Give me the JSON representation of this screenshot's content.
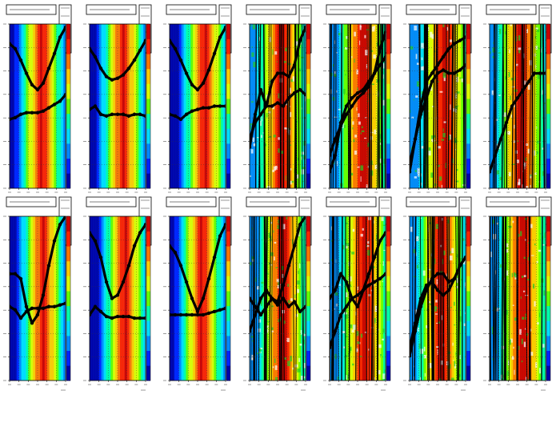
{
  "figure": {
    "rows": 2,
    "cols": 7,
    "colorbar_colors": [
      "#0000aa",
      "#0022ff",
      "#0088ff",
      "#00ddff",
      "#00ffaa",
      "#66ff00",
      "#ddff00",
      "#ffcc00",
      "#ff7700",
      "#ff2200",
      "#cc0000"
    ],
    "footer_prefix": "",
    "footer_emphasis": ""
  },
  "chart_data": [
    {
      "type": "heatmap",
      "panel_index": 0,
      "row": 0,
      "col": 0,
      "pattern": "smooth",
      "x": [
        0,
        0.1,
        0.2,
        0.3,
        0.4,
        0.5,
        0.6,
        0.7,
        0.8,
        0.9,
        1.0
      ],
      "series": [
        {
          "values": [
            0.12,
            0.15,
            0.22,
            0.3,
            0.37,
            0.4,
            0.36,
            0.27,
            0.18,
            0.08,
            0.02
          ]
        },
        {
          "values": [
            0.58,
            0.57,
            0.55,
            0.54,
            0.54,
            0.54,
            0.53,
            0.51,
            0.49,
            0.47,
            0.43
          ]
        }
      ]
    },
    {
      "type": "heatmap",
      "panel_index": 1,
      "row": 0,
      "col": 1,
      "pattern": "smooth",
      "x": [
        0,
        0.1,
        0.2,
        0.3,
        0.4,
        0.5,
        0.6,
        0.7,
        0.8,
        0.9,
        1.0
      ],
      "series": [
        {
          "values": [
            0.15,
            0.2,
            0.27,
            0.32,
            0.34,
            0.33,
            0.31,
            0.27,
            0.22,
            0.16,
            0.1
          ]
        },
        {
          "values": [
            0.52,
            0.5,
            0.55,
            0.56,
            0.55,
            0.55,
            0.55,
            0.56,
            0.55,
            0.55,
            0.56
          ]
        }
      ]
    },
    {
      "type": "heatmap",
      "panel_index": 2,
      "row": 0,
      "col": 2,
      "pattern": "smooth",
      "x": [
        0,
        0.1,
        0.2,
        0.3,
        0.4,
        0.5,
        0.6,
        0.7,
        0.8,
        0.9,
        1.0
      ],
      "series": [
        {
          "values": [
            0.1,
            0.15,
            0.22,
            0.3,
            0.37,
            0.4,
            0.36,
            0.28,
            0.18,
            0.08,
            0.02
          ]
        },
        {
          "values": [
            0.55,
            0.56,
            0.58,
            0.55,
            0.53,
            0.52,
            0.51,
            0.51,
            0.5,
            0.5,
            0.5
          ]
        }
      ]
    },
    {
      "type": "heatmap",
      "panel_index": 3,
      "row": 0,
      "col": 3,
      "pattern": "noisy",
      "x": [
        0,
        0.1,
        0.2,
        0.3,
        0.4,
        0.5,
        0.6,
        0.7,
        0.8,
        0.9,
        1.0
      ],
      "series": [
        {
          "values": [
            0.75,
            0.55,
            0.4,
            0.5,
            0.35,
            0.3,
            0.3,
            0.32,
            0.25,
            0.1,
            0.02
          ]
        },
        {
          "values": [
            0.7,
            0.6,
            0.55,
            0.5,
            0.5,
            0.48,
            0.5,
            0.45,
            0.42,
            0.4,
            0.43
          ]
        }
      ]
    },
    {
      "type": "heatmap",
      "panel_index": 4,
      "row": 0,
      "col": 4,
      "pattern": "noisy",
      "x": [
        0,
        0.1,
        0.2,
        0.3,
        0.4,
        0.5,
        0.6,
        0.7,
        0.8,
        0.9,
        1.0
      ],
      "series": [
        {
          "values": [
            0.9,
            0.8,
            0.6,
            0.5,
            0.45,
            0.42,
            0.4,
            0.35,
            0.3,
            0.15,
            0.05
          ]
        },
        {
          "values": [
            0.8,
            0.7,
            0.62,
            0.55,
            0.5,
            0.45,
            0.42,
            0.38,
            0.3,
            0.25,
            0.2
          ]
        }
      ]
    },
    {
      "type": "heatmap",
      "panel_index": 5,
      "row": 0,
      "col": 5,
      "pattern": "noisy",
      "x": [
        0,
        0.1,
        0.2,
        0.3,
        0.4,
        0.5,
        0.6,
        0.7,
        0.8,
        0.9,
        1.0
      ],
      "series": [
        {
          "values": [
            0.9,
            0.7,
            0.5,
            0.35,
            0.3,
            0.25,
            0.2,
            0.15,
            0.12,
            0.1,
            0.08
          ]
        },
        {
          "values": [
            0.85,
            0.7,
            0.55,
            0.45,
            0.35,
            0.3,
            0.28,
            0.3,
            0.3,
            0.28,
            0.25
          ]
        }
      ]
    },
    {
      "type": "heatmap",
      "panel_index": 6,
      "row": 0,
      "col": 6,
      "pattern": "noisy",
      "x": [
        0,
        0.1,
        0.2,
        0.3,
        0.4,
        0.5,
        0.6,
        0.7,
        0.8,
        0.9,
        1.0
      ],
      "series": [
        {
          "values": [
            0.9,
            0.8,
            0.7,
            0.6,
            0.5,
            0.45,
            0.4,
            0.35,
            0.3,
            0.3,
            0.3
          ]
        }
      ]
    },
    {
      "type": "heatmap",
      "panel_index": 7,
      "row": 1,
      "col": 0,
      "pattern": "smooth",
      "x": [
        0,
        0.1,
        0.2,
        0.3,
        0.4,
        0.5,
        0.6,
        0.7,
        0.8,
        0.9,
        1.0
      ],
      "series": [
        {
          "values": [
            0.35,
            0.35,
            0.38,
            0.55,
            0.65,
            0.6,
            0.48,
            0.3,
            0.15,
            0.05,
            0.0
          ]
        },
        {
          "values": [
            0.55,
            0.57,
            0.62,
            0.58,
            0.56,
            0.56,
            0.56,
            0.55,
            0.55,
            0.54,
            0.53
          ]
        }
      ]
    },
    {
      "type": "heatmap",
      "panel_index": 8,
      "row": 1,
      "col": 1,
      "pattern": "smooth",
      "x": [
        0,
        0.1,
        0.2,
        0.3,
        0.4,
        0.5,
        0.6,
        0.7,
        0.8,
        0.9,
        1.0
      ],
      "series": [
        {
          "values": [
            0.1,
            0.15,
            0.25,
            0.4,
            0.5,
            0.48,
            0.4,
            0.3,
            0.18,
            0.1,
            0.05
          ]
        },
        {
          "values": [
            0.6,
            0.55,
            0.58,
            0.61,
            0.62,
            0.61,
            0.61,
            0.61,
            0.62,
            0.62,
            0.62
          ]
        }
      ]
    },
    {
      "type": "heatmap",
      "panel_index": 9,
      "row": 1,
      "col": 2,
      "pattern": "smooth",
      "x": [
        0,
        0.1,
        0.2,
        0.3,
        0.4,
        0.5,
        0.6,
        0.7,
        0.8,
        0.9,
        1.0
      ],
      "series": [
        {
          "values": [
            0.18,
            0.22,
            0.3,
            0.4,
            0.5,
            0.58,
            0.5,
            0.38,
            0.25,
            0.12,
            0.05
          ]
        },
        {
          "values": [
            0.6,
            0.6,
            0.6,
            0.6,
            0.6,
            0.6,
            0.6,
            0.59,
            0.58,
            0.57,
            0.56
          ]
        }
      ]
    },
    {
      "type": "heatmap",
      "panel_index": 10,
      "row": 1,
      "col": 3,
      "pattern": "noisy",
      "x": [
        0,
        0.1,
        0.2,
        0.3,
        0.4,
        0.5,
        0.6,
        0.7,
        0.8,
        0.9,
        1.0
      ],
      "series": [
        {
          "values": [
            0.7,
            0.6,
            0.5,
            0.45,
            0.5,
            0.52,
            0.42,
            0.3,
            0.18,
            0.05,
            0.0
          ]
        },
        {
          "values": [
            0.5,
            0.55,
            0.6,
            0.55,
            0.5,
            0.54,
            0.5,
            0.55,
            0.52,
            0.58,
            0.55
          ]
        }
      ]
    },
    {
      "type": "heatmap",
      "panel_index": 11,
      "row": 1,
      "col": 4,
      "pattern": "noisy",
      "x": [
        0,
        0.1,
        0.2,
        0.3,
        0.4,
        0.5,
        0.6,
        0.7,
        0.8,
        0.9,
        1.0
      ],
      "series": [
        {
          "values": [
            0.5,
            0.45,
            0.35,
            0.4,
            0.5,
            0.55,
            0.45,
            0.35,
            0.25,
            0.15,
            0.1
          ]
        },
        {
          "values": [
            0.8,
            0.7,
            0.6,
            0.55,
            0.5,
            0.48,
            0.45,
            0.42,
            0.4,
            0.38,
            0.35
          ]
        }
      ]
    },
    {
      "type": "heatmap",
      "panel_index": 12,
      "row": 1,
      "col": 5,
      "pattern": "noisy",
      "x": [
        0,
        0.1,
        0.2,
        0.3,
        0.4,
        0.5,
        0.6,
        0.7,
        0.8,
        0.9,
        1.0
      ],
      "series": [
        {
          "values": [
            0.85,
            0.7,
            0.55,
            0.45,
            0.38,
            0.35,
            0.35,
            0.4,
            0.38,
            0.3,
            0.25
          ]
        },
        {
          "values": [
            0.8,
            0.65,
            0.5,
            0.42,
            0.4,
            0.45,
            0.48,
            0.45,
            0.38,
            0.3,
            0.25
          ]
        }
      ]
    },
    {
      "type": "heatmap",
      "panel_index": 13,
      "row": 1,
      "col": 6,
      "pattern": "noisy",
      "x": [
        0,
        0.1,
        0.2,
        0.3,
        0.4,
        0.5,
        0.6,
        0.7,
        0.8,
        0.9,
        1.0
      ],
      "series": []
    }
  ]
}
